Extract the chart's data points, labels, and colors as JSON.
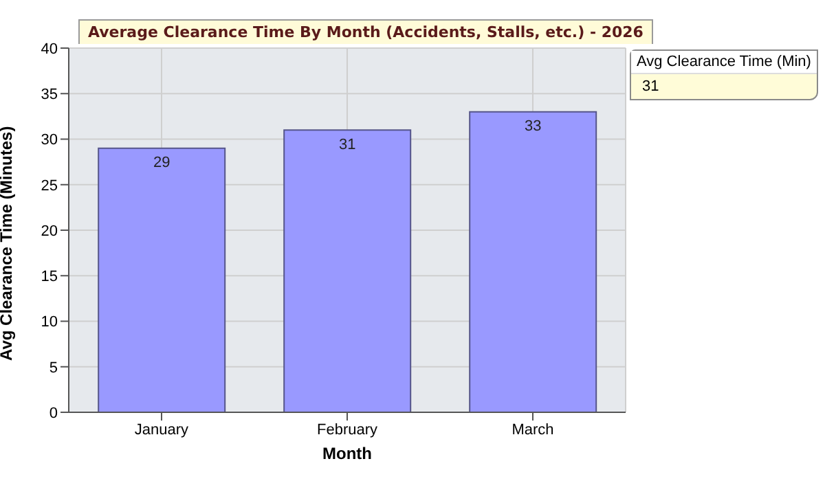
{
  "chart_data": {
    "type": "bar",
    "title": "Average Clearance Time By Month (Accidents, Stalls, etc.) - 2026",
    "xlabel": "Month",
    "ylabel": "Avg Clearance Time (Minutes)",
    "legend_title": "Avg Clearance Time (Min)",
    "annotations": [
      "31"
    ],
    "categories": [
      "January",
      "February",
      "March"
    ],
    "series": [
      {
        "color": "#9999ff",
        "values": [
          29,
          31,
          33
        ]
      }
    ],
    "ylim": [
      0,
      40
    ],
    "yticks": [
      0,
      5,
      10,
      15,
      20,
      25,
      30,
      35,
      40
    ],
    "grid": true,
    "data_labels": true
  }
}
